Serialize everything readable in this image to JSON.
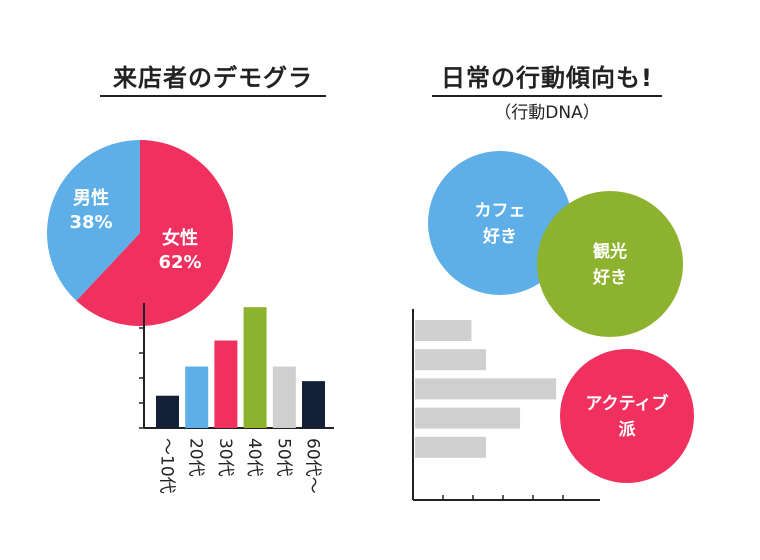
{
  "left_panel": {
    "title": "来店者のデモグラ"
  },
  "right_panel": {
    "title": "日常の行動傾向も!",
    "subtitle": "（行動DNA）"
  },
  "colors": {
    "pink": "#f0305e",
    "blue": "#5eaee8",
    "green": "#8db22e",
    "navy": "#142038",
    "gray": "#cfcfcf"
  },
  "chart_data": [
    {
      "type": "pie",
      "slices": [
        {
          "label_lines": [
            "女性",
            "62%"
          ],
          "value": 62,
          "color": "#f0305e"
        },
        {
          "label_lines": [
            "男性",
            "38%"
          ],
          "value": 38,
          "color": "#5eaee8"
        }
      ]
    },
    {
      "type": "bar",
      "categories": [
        "〜10代",
        "20代",
        "30代",
        "40代",
        "50代",
        "60代〜"
      ],
      "values": [
        1.55,
        2.95,
        4.2,
        5.8,
        2.95,
        2.25
      ],
      "colors": [
        "#142038",
        "#5eaee8",
        "#f0305e",
        "#8db22e",
        "#cfcfcf",
        "#142038"
      ],
      "ylim": [
        0,
        6
      ],
      "grid": false
    },
    {
      "type": "bar",
      "orientation": "horizontal",
      "values": [
        0.58,
        0.73,
        1.45,
        1.08,
        0.73
      ],
      "color": "#cfcfcf",
      "xlim": [
        0,
        1.5
      ],
      "grid": false
    }
  ],
  "bubbles": [
    {
      "label_lines": [
        "カフェ",
        "好き"
      ],
      "color": "#5eaee8"
    },
    {
      "label_lines": [
        "観光",
        "好き"
      ],
      "color": "#8db22e"
    },
    {
      "label_lines": [
        "アクティブ",
        "派"
      ],
      "color": "#f0305e"
    }
  ]
}
